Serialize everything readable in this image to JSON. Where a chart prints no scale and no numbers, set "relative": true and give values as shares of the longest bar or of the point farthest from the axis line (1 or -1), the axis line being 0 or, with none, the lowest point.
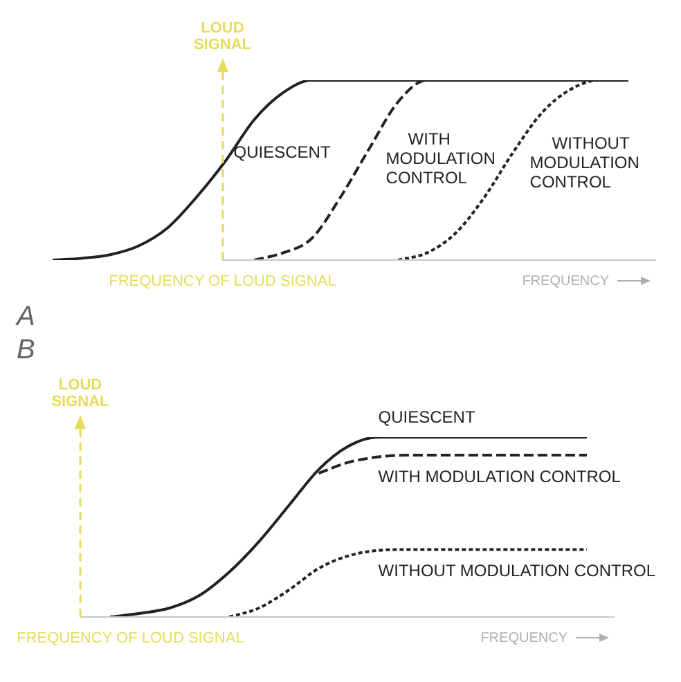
{
  "chart_data": [
    {
      "type": "line",
      "title": "A",
      "xlabel": "FREQUENCY",
      "relative": true,
      "legend": false,
      "marker": "none",
      "tick_labels": false,
      "annotations": [
        "LOUD SIGNAL",
        "FREQUENCY OF LOUD SIGNAL"
      ],
      "categories": [
        null,
        null,
        null,
        null,
        null,
        null,
        null,
        null,
        null,
        null,
        null,
        null,
        null,
        null,
        null,
        null,
        null,
        null,
        null,
        null,
        null
      ],
      "series": [
        {
          "name": "QUIESCENT",
          "color": "#222222",
          "line_style": "solid",
          "values": [
            0,
            0.01,
            0.03,
            0.08,
            0.18,
            0.35,
            0.55,
            0.78,
            0.93,
            1,
            1,
            1,
            1,
            1,
            1,
            1,
            1,
            1,
            1,
            1,
            1
          ]
        },
        {
          "name": "WITH MODULATION CONTROL",
          "color": "#222222",
          "line_style": "dashed",
          "values": [
            null,
            null,
            null,
            null,
            null,
            null,
            null,
            0,
            0.04,
            0.12,
            0.35,
            0.62,
            0.88,
            1,
            1,
            1,
            1,
            1,
            1,
            1,
            1
          ]
        },
        {
          "name": "WITHOUT MODULATION CONTROL",
          "color": "#222222",
          "line_style": "dotted",
          "values": [
            null,
            null,
            null,
            null,
            null,
            null,
            null,
            null,
            null,
            null,
            null,
            null,
            0,
            0.04,
            0.15,
            0.35,
            0.6,
            0.82,
            0.95,
            1,
            1
          ]
        }
      ]
    },
    {
      "type": "line",
      "title": "B",
      "xlabel": "FREQUENCY",
      "relative": true,
      "legend": false,
      "marker": "none",
      "tick_labels": false,
      "annotations": [
        "LOUD SIGNAL",
        "FREQUENCY OF LOUD SIGNAL"
      ],
      "categories": [
        null,
        null,
        null,
        null,
        null,
        null,
        null,
        null,
        null,
        null,
        null,
        null,
        null,
        null,
        null,
        null,
        null,
        null
      ],
      "series": [
        {
          "name": "QUIESCENT",
          "color": "#222222",
          "line_style": "solid",
          "values": [
            null,
            0,
            0.02,
            0.05,
            0.12,
            0.25,
            0.42,
            0.62,
            0.82,
            0.95,
            1,
            1,
            1,
            1,
            1,
            1,
            1,
            1
          ]
        },
        {
          "name": "WITH MODULATION CONTROL",
          "color": "#222222",
          "line_style": "dashed",
          "values": [
            null,
            null,
            null,
            null,
            null,
            null,
            null,
            null,
            0.8,
            0.86,
            0.89,
            0.9,
            0.9,
            0.9,
            0.9,
            0.9,
            0.9,
            0.9
          ]
        },
        {
          "name": "WITHOUT MODULATION CONTROL",
          "color": "#222222",
          "line_style": "dotted",
          "values": [
            null,
            null,
            null,
            null,
            null,
            0,
            0.05,
            0.15,
            0.27,
            0.34,
            0.37,
            0.375,
            0.375,
            0.375,
            0.375,
            0.375,
            0.375,
            0.375
          ]
        }
      ]
    }
  ]
}
